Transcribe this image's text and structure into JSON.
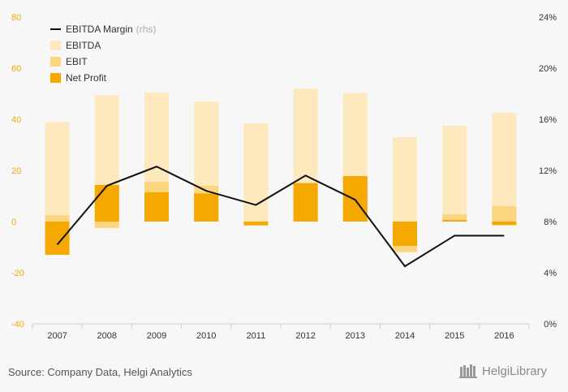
{
  "chart_data": {
    "type": "bar",
    "categories": [
      "2007",
      "2008",
      "2009",
      "2010",
      "2011",
      "2012",
      "2013",
      "2014",
      "2015",
      "2016"
    ],
    "series": [
      {
        "name": "EBITDA",
        "kind": "bar",
        "color": "#fde9bd",
        "values": [
          39,
          49.5,
          50.5,
          47,
          38.5,
          52,
          50.3,
          33,
          37.5,
          42.5
        ]
      },
      {
        "name": "EBIT",
        "kind": "bar",
        "color": "#fcd581",
        "values": [
          2.5,
          -2.5,
          15.5,
          14,
          -1,
          15.2,
          17.5,
          -12,
          2.8,
          6
        ]
      },
      {
        "name": "Net Profit",
        "kind": "bar",
        "color": "#f5a800",
        "values": [
          -13,
          14.3,
          11.5,
          11,
          -1.5,
          15,
          17.8,
          -9.5,
          0.6,
          -1.4
        ]
      },
      {
        "name": "EBITDA Margin",
        "kind": "line",
        "axis": "right",
        "color": "#111111",
        "values": [
          6.2,
          10.8,
          12.3,
          10.4,
          9.3,
          11.6,
          9.7,
          4.5,
          6.9,
          6.9
        ]
      }
    ],
    "ylim": [
      -40,
      80
    ],
    "yticks": [
      -40,
      -20,
      0,
      20,
      40,
      60,
      80
    ],
    "y2lim": [
      0,
      24
    ],
    "y2ticks": [
      "0%",
      "4%",
      "8%",
      "12%",
      "16%",
      "20%",
      "24%"
    ],
    "y2tick_values": [
      0,
      4,
      8,
      12,
      16,
      20,
      24
    ],
    "legend": [
      {
        "label": "EBITDA Margin",
        "suffix": "(rhs)",
        "kind": "line",
        "color": "#111111"
      },
      {
        "label": "EBITDA",
        "suffix": "",
        "kind": "box",
        "color": "#fde9bd"
      },
      {
        "label": "EBIT",
        "suffix": "",
        "kind": "box",
        "color": "#fcd581"
      },
      {
        "label": "Net Profit",
        "suffix": "",
        "kind": "box",
        "color": "#f5a800"
      }
    ],
    "legend_position": "top-left",
    "left_tick_color": "#f5a800",
    "right_tick_color": "#333333"
  },
  "footer": {
    "source": "Source: Company Data, Helgi Analytics",
    "logo_text": "HelgiLibrary"
  }
}
